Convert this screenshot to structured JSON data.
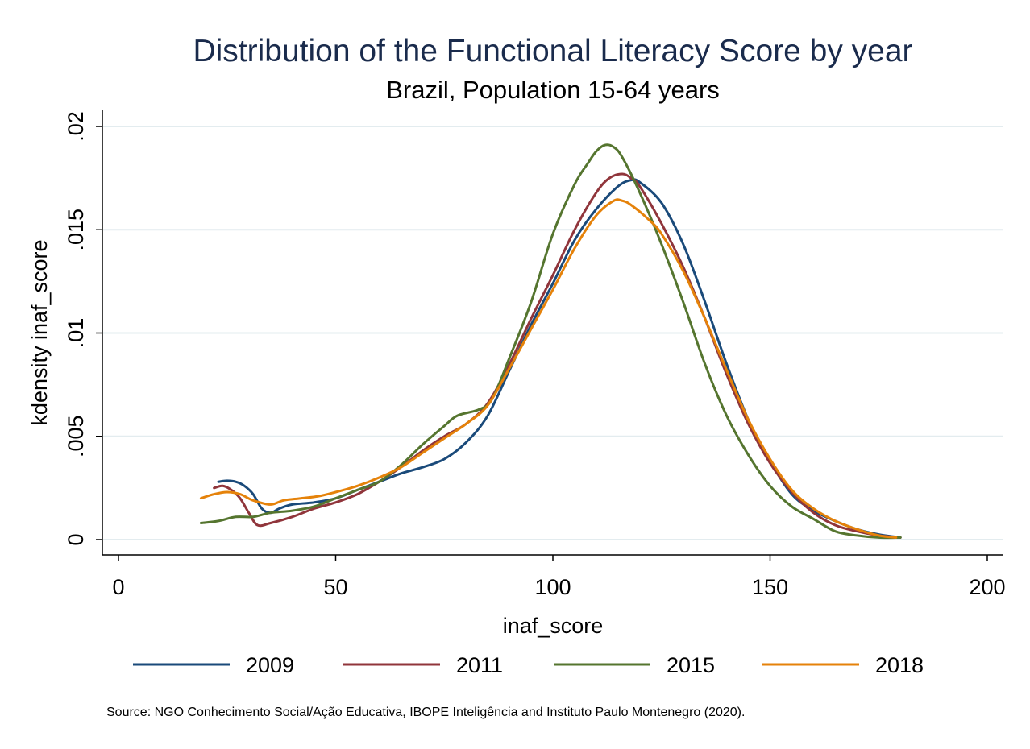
{
  "chart_data": {
    "type": "line",
    "title": "Distribution of the Functional Literacy Score by year",
    "subtitle": "Brazil, Population 15-64 years",
    "xlabel": "inaf_score",
    "ylabel": "kdensity inaf_score",
    "xlim": [
      0,
      200
    ],
    "ylim": [
      0,
      0.02
    ],
    "x_ticks": [
      {
        "value": 0,
        "label": "0"
      },
      {
        "value": 50,
        "label": "50"
      },
      {
        "value": 100,
        "label": "100"
      },
      {
        "value": 150,
        "label": "150"
      },
      {
        "value": 200,
        "label": "200"
      }
    ],
    "y_ticks": [
      {
        "value": 0,
        "label": "0"
      },
      {
        "value": 0.005,
        "label": ".005"
      },
      {
        "value": 0.01,
        "label": ".01"
      },
      {
        "value": 0.015,
        "label": ".015"
      },
      {
        "value": 0.02,
        "label": ".02"
      }
    ],
    "grid": true,
    "legend_position": "bottom",
    "note": "Source: NGO Conhecimento Social/Ação Educativa, IBOPE Inteligência and Instituto Paulo Montenegro (2020).",
    "series": [
      {
        "name": "2009",
        "color": "#1a4a7a",
        "points": [
          [
            23,
            0.0028
          ],
          [
            25,
            0.00285
          ],
          [
            27,
            0.0028
          ],
          [
            29,
            0.0026
          ],
          [
            31,
            0.0022
          ],
          [
            33,
            0.0015
          ],
          [
            35,
            0.0013
          ],
          [
            37,
            0.0015
          ],
          [
            40,
            0.0017
          ],
          [
            45,
            0.0018
          ],
          [
            50,
            0.002
          ],
          [
            55,
            0.0024
          ],
          [
            60,
            0.0028
          ],
          [
            65,
            0.0032
          ],
          [
            70,
            0.0035
          ],
          [
            75,
            0.0039
          ],
          [
            80,
            0.0047
          ],
          [
            85,
            0.006
          ],
          [
            90,
            0.0082
          ],
          [
            95,
            0.0104
          ],
          [
            100,
            0.0124
          ],
          [
            105,
            0.0145
          ],
          [
            110,
            0.016
          ],
          [
            115,
            0.0171
          ],
          [
            118,
            0.0174
          ],
          [
            120,
            0.0173
          ],
          [
            125,
            0.0163
          ],
          [
            130,
            0.0143
          ],
          [
            135,
            0.0115
          ],
          [
            140,
            0.0085
          ],
          [
            145,
            0.0058
          ],
          [
            150,
            0.0038
          ],
          [
            155,
            0.0022
          ],
          [
            160,
            0.0014
          ],
          [
            165,
            0.0009
          ],
          [
            170,
            0.0005
          ],
          [
            175,
            0.00025
          ],
          [
            180,
            0.0001
          ]
        ]
      },
      {
        "name": "2011",
        "color": "#90353b",
        "points": [
          [
            22,
            0.0025
          ],
          [
            24,
            0.0026
          ],
          [
            26,
            0.0024
          ],
          [
            28,
            0.002
          ],
          [
            30,
            0.0013
          ],
          [
            32,
            0.0007
          ],
          [
            35,
            0.0008
          ],
          [
            40,
            0.0011
          ],
          [
            45,
            0.0015
          ],
          [
            50,
            0.0018
          ],
          [
            55,
            0.0022
          ],
          [
            60,
            0.0028
          ],
          [
            65,
            0.0035
          ],
          [
            70,
            0.0043
          ],
          [
            75,
            0.005
          ],
          [
            80,
            0.0056
          ],
          [
            85,
            0.0066
          ],
          [
            90,
            0.0085
          ],
          [
            95,
            0.0107
          ],
          [
            100,
            0.0128
          ],
          [
            105,
            0.015
          ],
          [
            110,
            0.0168
          ],
          [
            113,
            0.0175
          ],
          [
            116,
            0.0177
          ],
          [
            118,
            0.0175
          ],
          [
            120,
            0.0171
          ],
          [
            125,
            0.0153
          ],
          [
            130,
            0.0132
          ],
          [
            135,
            0.0107
          ],
          [
            140,
            0.008
          ],
          [
            145,
            0.0056
          ],
          [
            150,
            0.0037
          ],
          [
            155,
            0.0023
          ],
          [
            160,
            0.0013
          ],
          [
            165,
            0.0007
          ],
          [
            170,
            0.0004
          ],
          [
            175,
            0.0002
          ],
          [
            180,
            0.0001
          ]
        ]
      },
      {
        "name": "2015",
        "color": "#55752f",
        "points": [
          [
            19,
            0.0008
          ],
          [
            23,
            0.0009
          ],
          [
            27,
            0.0011
          ],
          [
            31,
            0.0011
          ],
          [
            35,
            0.0013
          ],
          [
            40,
            0.0014
          ],
          [
            45,
            0.0016
          ],
          [
            50,
            0.002
          ],
          [
            55,
            0.0024
          ],
          [
            60,
            0.0028
          ],
          [
            65,
            0.0036
          ],
          [
            70,
            0.0046
          ],
          [
            75,
            0.0055
          ],
          [
            78,
            0.006
          ],
          [
            83,
            0.0063
          ],
          [
            86,
            0.0068
          ],
          [
            90,
            0.0088
          ],
          [
            95,
            0.0115
          ],
          [
            100,
            0.0148
          ],
          [
            105,
            0.0172
          ],
          [
            108,
            0.0182
          ],
          [
            110,
            0.0188
          ],
          [
            112,
            0.0191
          ],
          [
            114,
            0.019
          ],
          [
            116,
            0.0185
          ],
          [
            120,
            0.0168
          ],
          [
            125,
            0.0143
          ],
          [
            130,
            0.0115
          ],
          [
            135,
            0.0085
          ],
          [
            140,
            0.006
          ],
          [
            145,
            0.0041
          ],
          [
            150,
            0.0026
          ],
          [
            155,
            0.0016
          ],
          [
            160,
            0.001
          ],
          [
            165,
            0.0004
          ],
          [
            170,
            0.0002
          ],
          [
            175,
            0.0001
          ],
          [
            180,
            0.0001
          ]
        ]
      },
      {
        "name": "2018",
        "color": "#e5820a",
        "points": [
          [
            19,
            0.002
          ],
          [
            22,
            0.0022
          ],
          [
            25,
            0.0023
          ],
          [
            28,
            0.0022
          ],
          [
            31,
            0.0019
          ],
          [
            35,
            0.0017
          ],
          [
            38,
            0.0019
          ],
          [
            42,
            0.002
          ],
          [
            46,
            0.0021
          ],
          [
            50,
            0.0023
          ],
          [
            55,
            0.0026
          ],
          [
            60,
            0.003
          ],
          [
            65,
            0.0035
          ],
          [
            70,
            0.0042
          ],
          [
            75,
            0.0049
          ],
          [
            80,
            0.0056
          ],
          [
            85,
            0.0065
          ],
          [
            90,
            0.0083
          ],
          [
            95,
            0.0102
          ],
          [
            100,
            0.0121
          ],
          [
            105,
            0.0141
          ],
          [
            110,
            0.0157
          ],
          [
            114,
            0.0164
          ],
          [
            116,
            0.0164
          ],
          [
            118,
            0.0162
          ],
          [
            122,
            0.0155
          ],
          [
            125,
            0.0148
          ],
          [
            130,
            0.013
          ],
          [
            135,
            0.0107
          ],
          [
            140,
            0.0082
          ],
          [
            145,
            0.0058
          ],
          [
            150,
            0.0039
          ],
          [
            155,
            0.0024
          ],
          [
            160,
            0.0015
          ],
          [
            165,
            0.0009
          ],
          [
            170,
            0.0005
          ],
          [
            175,
            0.0002
          ],
          [
            179,
            0.0001
          ]
        ]
      }
    ]
  }
}
